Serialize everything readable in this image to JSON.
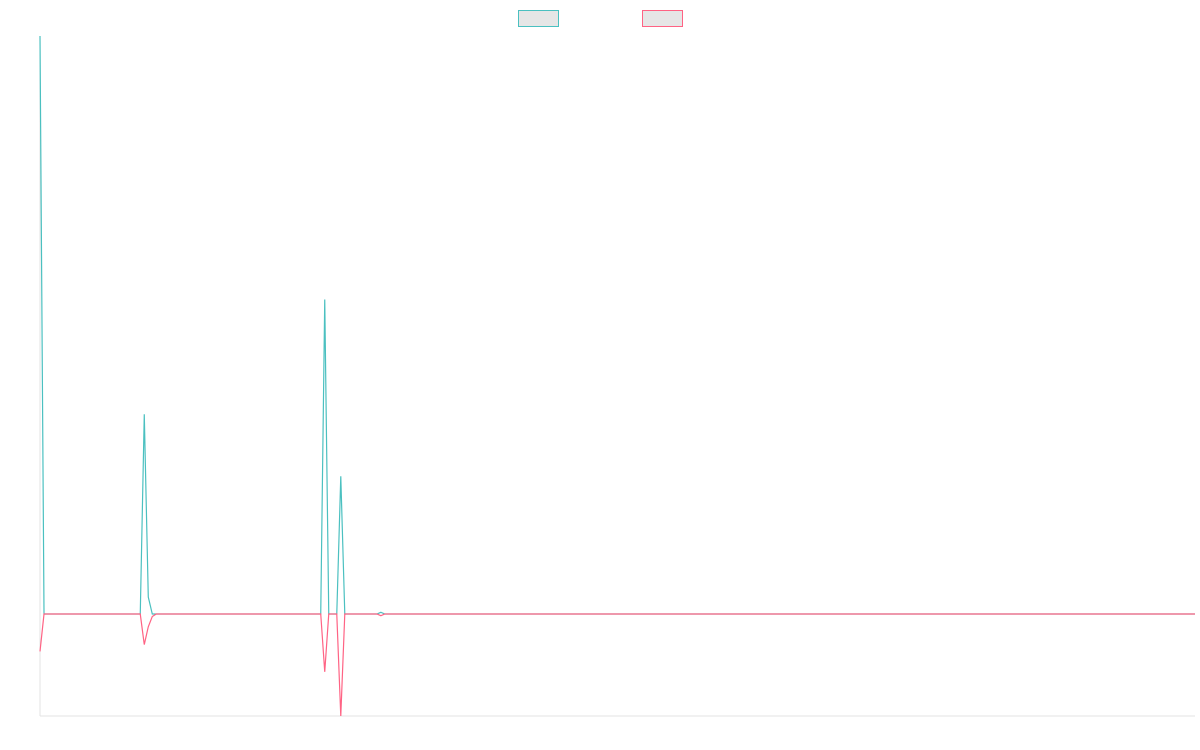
{
  "chart_data": {
    "type": "line",
    "title": "",
    "xlabel": "",
    "ylabel": "",
    "grid": false,
    "legend_position": "top-center",
    "x": [
      0,
      1,
      25,
      26,
      27,
      28,
      29,
      30,
      70,
      71,
      72,
      73,
      74,
      75,
      76,
      77,
      78,
      84,
      85,
      86,
      87,
      288
    ],
    "xlim": [
      0,
      288
    ],
    "ylim": [
      -120,
      680
    ],
    "series": [
      {
        "color": "#4bc0c0",
        "fill": "#e6e6e6",
        "values": [
          680,
          0,
          0,
          235,
          20,
          0,
          0,
          0,
          0,
          370,
          0,
          0,
          0,
          162,
          0,
          0,
          0,
          0,
          2,
          0,
          0,
          0
        ]
      },
      {
        "color": "#ff6384",
        "fill": "#e6e6e6",
        "values": [
          -44,
          0,
          0,
          -36,
          -15,
          -3,
          0,
          0,
          0,
          -68,
          0,
          0,
          0,
          -120,
          0,
          0,
          0,
          0,
          -2,
          0,
          0,
          0
        ]
      }
    ]
  }
}
